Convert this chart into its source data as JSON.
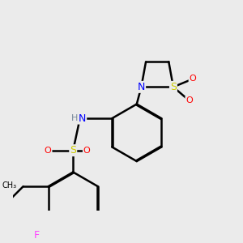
{
  "background_color": "#ebebeb",
  "bond_color": "#000000",
  "atom_colors": {
    "N": "#0000ff",
    "S": "#cccc00",
    "O": "#ff0000",
    "F": "#ff44ff",
    "H": "#778899",
    "C": "#000000"
  },
  "bond_width": 1.8,
  "dbo": 0.018
}
